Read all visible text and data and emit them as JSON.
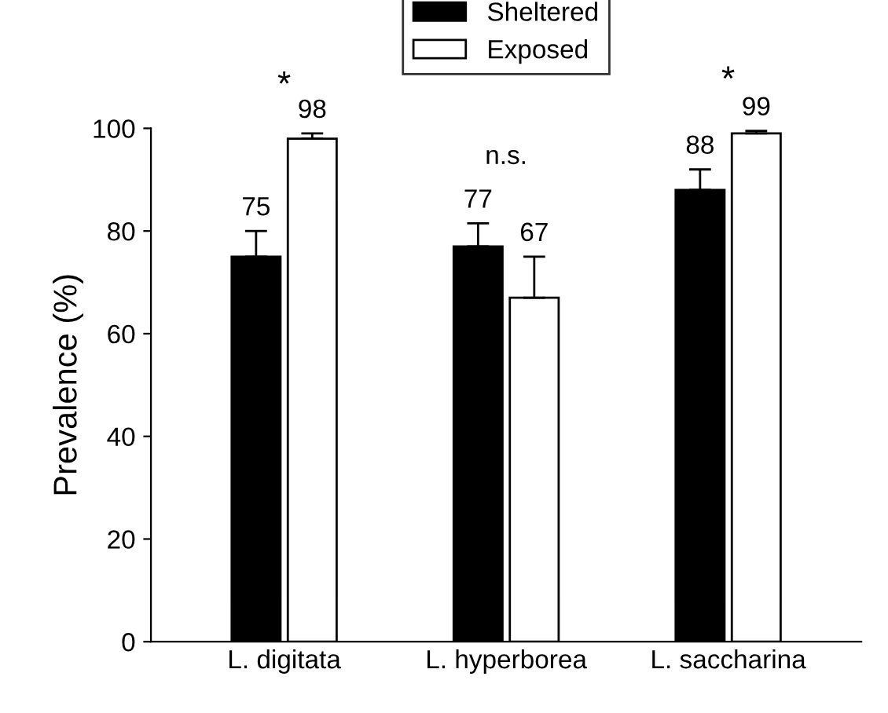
{
  "chart_data": {
    "type": "bar",
    "ylabel": "Prevalence (%)",
    "categories": [
      "L. digitata",
      "L. hyperborea",
      "L. saccharina"
    ],
    "series": [
      {
        "name": "Sheltered",
        "color": "#000000",
        "values": [
          75,
          77,
          88
        ],
        "errors": [
          [
            75,
            80
          ],
          [
            77,
            81.5
          ],
          [
            88,
            92
          ]
        ]
      },
      {
        "name": "Exposed",
        "color": "#ffffff",
        "values": [
          98,
          67,
          99
        ],
        "errors": [
          [
            98,
            99
          ],
          [
            67,
            75
          ],
          [
            99,
            99.5
          ]
        ]
      }
    ],
    "ylim": [
      0,
      100
    ],
    "yticks": [
      0,
      20,
      40,
      60,
      80,
      100
    ],
    "data_labels": true,
    "legend": "top",
    "grid": false,
    "annotations": [
      "*",
      "n.s.",
      "*"
    ]
  }
}
